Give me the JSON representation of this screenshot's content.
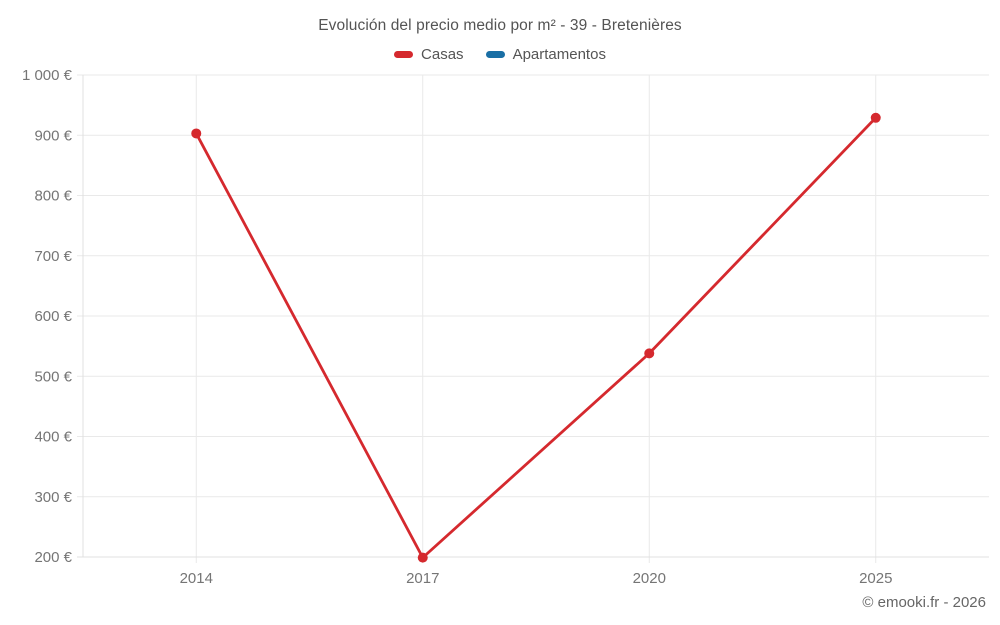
{
  "chart_data": {
    "type": "line",
    "title": "Evolución del precio medio por m² - 39 - Bretenières",
    "categories": [
      "2014",
      "2017",
      "2020",
      "2025"
    ],
    "series": [
      {
        "name": "Casas",
        "color": "#d5292e",
        "values": [
          903,
          199,
          538,
          929
        ]
      },
      {
        "name": "Apartamentos",
        "color": "#1a6fa5",
        "values": []
      }
    ],
    "xlabel": "",
    "ylabel": "",
    "ylim": [
      200,
      1000
    ],
    "y_ticks": [
      {
        "value": 200,
        "label": "200 €"
      },
      {
        "value": 300,
        "label": "300 €"
      },
      {
        "value": 400,
        "label": "400 €"
      },
      {
        "value": 500,
        "label": "500 €"
      },
      {
        "value": 600,
        "label": "600 €"
      },
      {
        "value": 700,
        "label": "700 €"
      },
      {
        "value": 800,
        "label": "800 €"
      },
      {
        "value": 900,
        "label": "900 €"
      },
      {
        "value": 1000,
        "label": "1 000 €"
      }
    ],
    "grid": true,
    "legend_position": "top",
    "colors": {
      "grid": "#e9e9e9",
      "axis": "#e0e0e0",
      "tick_text": "#757575",
      "title_text": "#545454",
      "legend_text": "#555555"
    }
  },
  "footer": {
    "copyright": "© emooki.fr - 2026"
  }
}
